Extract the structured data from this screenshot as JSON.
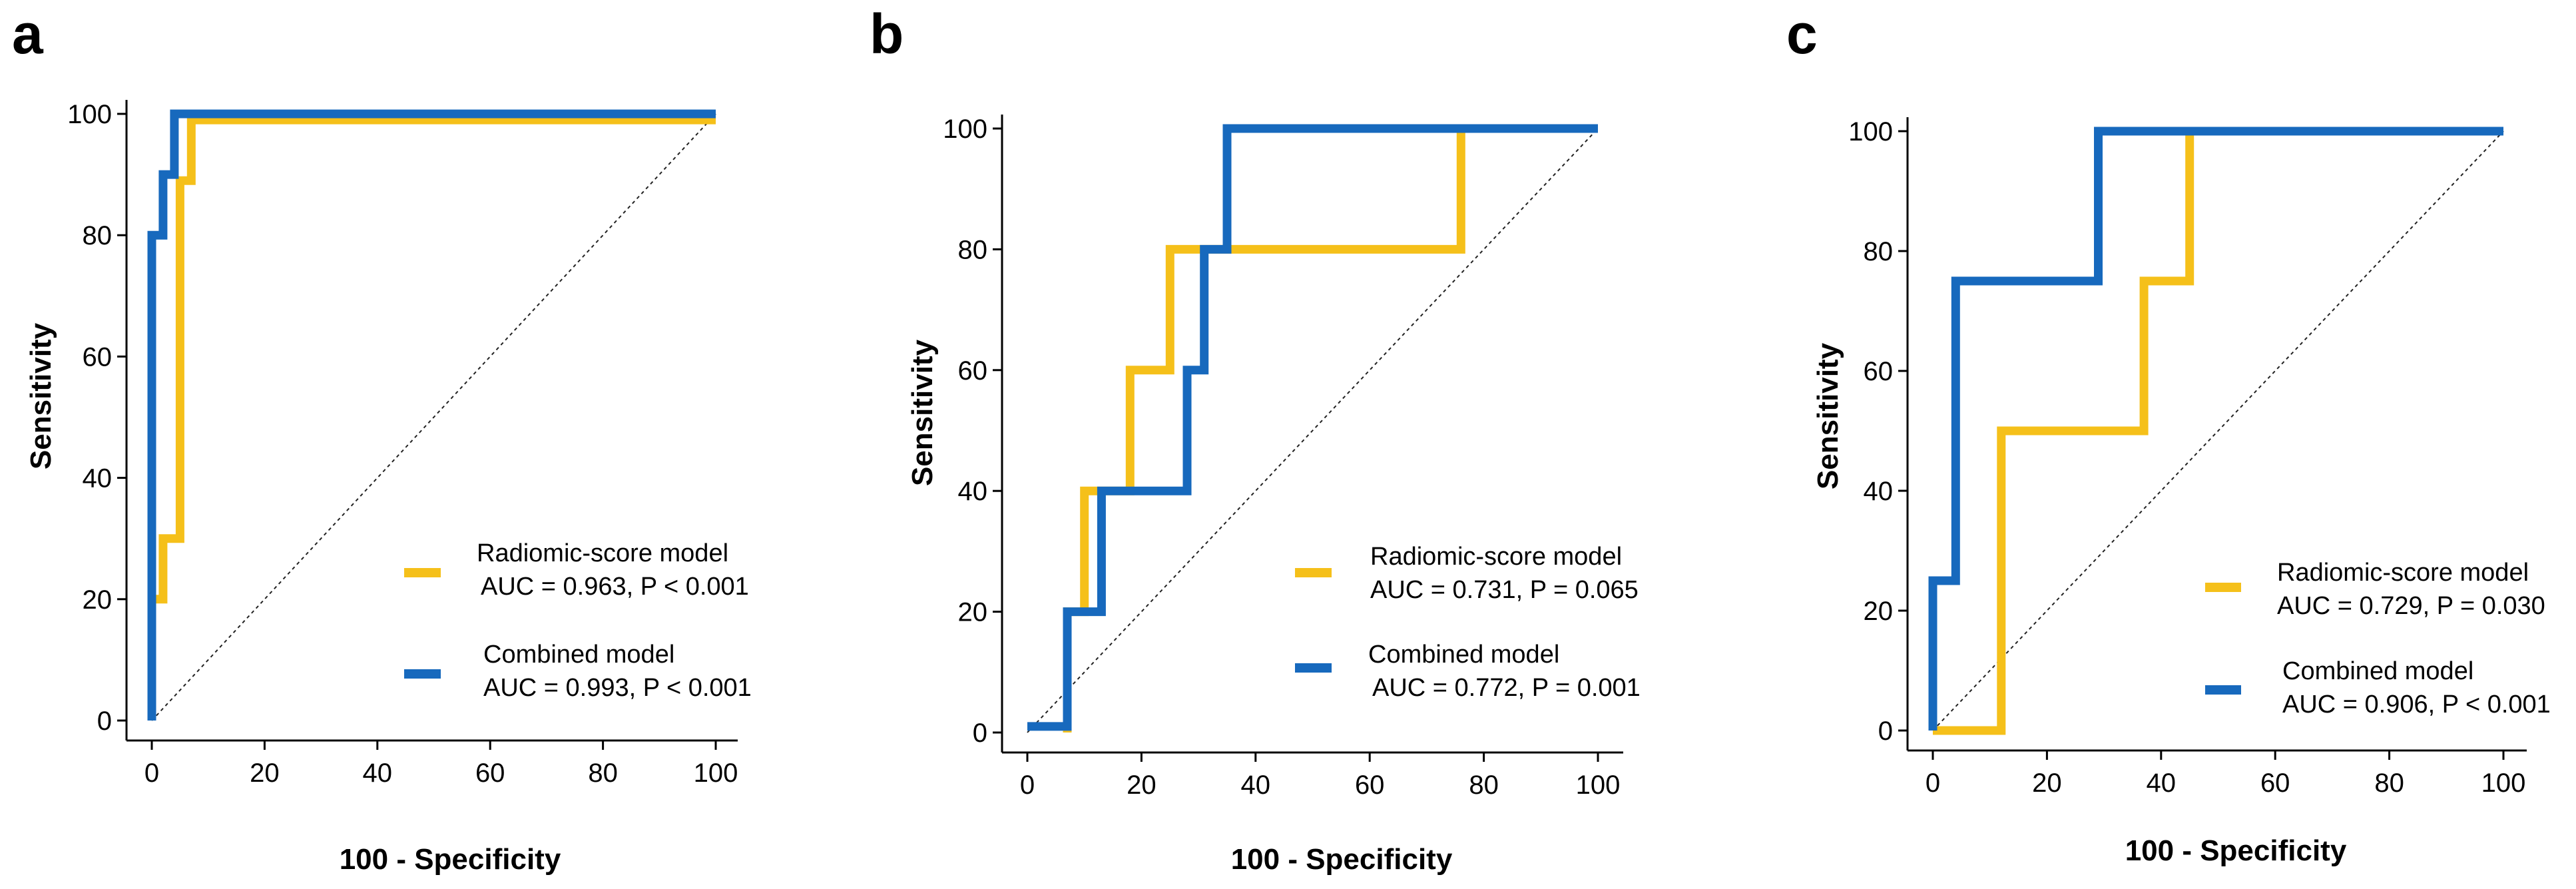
{
  "chart_data": [
    {
      "type": "line",
      "panel": "a",
      "xlabel": "100 - Specificity",
      "ylabel": "Sensitivity",
      "xlim": [
        0,
        100
      ],
      "ylim": [
        0,
        100
      ],
      "xticks": [
        0,
        20,
        40,
        60,
        80,
        100
      ],
      "yticks": [
        0,
        20,
        40,
        60,
        80,
        100
      ],
      "diagonal_reference": true,
      "series": [
        {
          "name": "Radiomic-score model",
          "color": "#F5C01A",
          "legend_label": "Radiomic-score model",
          "legend_stats": "AUC = 0.963, P < 0.001",
          "points": [
            [
              0,
              0
            ],
            [
              0,
              20
            ],
            [
              2,
              20
            ],
            [
              2,
              30
            ],
            [
              5,
              30
            ],
            [
              5,
              89
            ],
            [
              7,
              89
            ],
            [
              7,
              99
            ],
            [
              100,
              99
            ]
          ]
        },
        {
          "name": "Combined model",
          "color": "#1769BD",
          "legend_label": "Combined model",
          "legend_stats": "AUC = 0.993, P < 0.001",
          "points": [
            [
              0,
              0
            ],
            [
              0,
              80
            ],
            [
              2,
              80
            ],
            [
              2,
              90
            ],
            [
              4,
              90
            ],
            [
              4,
              100
            ],
            [
              100,
              100
            ]
          ]
        }
      ]
    },
    {
      "type": "line",
      "panel": "b",
      "xlabel": "100 - Specificity",
      "ylabel": "Sensitivity",
      "xlim": [
        0,
        100
      ],
      "ylim": [
        0,
        100
      ],
      "xticks": [
        0,
        20,
        40,
        60,
        80,
        100
      ],
      "yticks": [
        0,
        20,
        40,
        60,
        80,
        100
      ],
      "diagonal_reference": true,
      "series": [
        {
          "name": "Radiomic-score model",
          "color": "#F5C01A",
          "legend_label": "Radiomic-score model",
          "legend_stats": "AUC = 0.731, P = 0.065",
          "points": [
            [
              7,
              0
            ],
            [
              7,
              20
            ],
            [
              10,
              20
            ],
            [
              10,
              40
            ],
            [
              18,
              40
            ],
            [
              18,
              60
            ],
            [
              25,
              60
            ],
            [
              25,
              80
            ],
            [
              76,
              80
            ],
            [
              76,
              100
            ],
            [
              100,
              100
            ]
          ]
        },
        {
          "name": "Combined model",
          "color": "#1769BD",
          "legend_label": "Combined model",
          "legend_stats": "AUC = 0.772, P = 0.001",
          "points": [
            [
              0,
              1
            ],
            [
              7,
              1
            ],
            [
              7,
              20
            ],
            [
              13,
              20
            ],
            [
              13,
              40
            ],
            [
              28,
              40
            ],
            [
              28,
              60
            ],
            [
              31,
              60
            ],
            [
              31,
              80
            ],
            [
              35,
              80
            ],
            [
              35,
              100
            ],
            [
              100,
              100
            ]
          ]
        }
      ]
    },
    {
      "type": "line",
      "panel": "c",
      "xlabel": "100 - Specificity",
      "ylabel": "Sensitivity",
      "xlim": [
        0,
        100
      ],
      "ylim": [
        0,
        100
      ],
      "xticks": [
        0,
        20,
        40,
        60,
        80,
        100
      ],
      "yticks": [
        0,
        20,
        40,
        60,
        80,
        100
      ],
      "diagonal_reference": true,
      "series": [
        {
          "name": "Radiomic-score model",
          "color": "#F5C01A",
          "legend_label": "Radiomic-score model",
          "legend_stats": "AUC = 0.729, P = 0.030",
          "points": [
            [
              0,
              0
            ],
            [
              12,
              0
            ],
            [
              12,
              50
            ],
            [
              37,
              50
            ],
            [
              37,
              75
            ],
            [
              45,
              75
            ],
            [
              45,
              100
            ],
            [
              100,
              100
            ]
          ]
        },
        {
          "name": "Combined model",
          "color": "#1769BD",
          "legend_label": "Combined model",
          "legend_stats": "AUC = 0.906, P < 0.001",
          "points": [
            [
              0,
              0
            ],
            [
              0,
              25
            ],
            [
              4,
              25
            ],
            [
              4,
              75
            ],
            [
              29,
              75
            ],
            [
              29,
              100
            ],
            [
              100,
              100
            ]
          ]
        }
      ]
    }
  ]
}
